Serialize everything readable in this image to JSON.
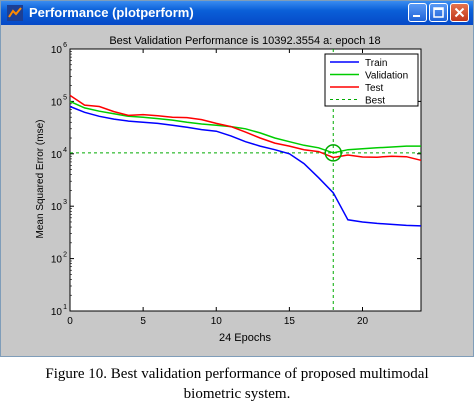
{
  "window": {
    "title": "Performance (plotperform)",
    "icon": "matlab-figure-icon",
    "buttons": [
      "minimize-icon",
      "maximize-icon",
      "close-icon"
    ]
  },
  "chart_data": {
    "type": "line",
    "title": "Best Validation Performance is 10392.3554 a: epoch 18",
    "xlabel": "24 Epochs",
    "ylabel": "Mean Squared Error  (mse)",
    "xlim": [
      0,
      24
    ],
    "ylim": [
      10,
      1000000
    ],
    "y_scale": "log",
    "x_ticks": [
      0,
      5,
      10,
      15,
      20
    ],
    "y_ticks": [
      {
        "value": 10,
        "label": "10"
      },
      {
        "value": 100,
        "label": "10"
      },
      {
        "value": 1000,
        "label": "10"
      },
      {
        "value": 10000,
        "label": "10"
      },
      {
        "value": 100000,
        "label": "10"
      },
      {
        "value": 1000000,
        "label": "10"
      }
    ],
    "y_tick_exponents": [
      "1",
      "2",
      "3",
      "4",
      "5",
      "6"
    ],
    "grid": false,
    "legend_position": "top-right",
    "series": [
      {
        "name": "Train",
        "color": "#0000ff",
        "x": [
          0,
          1,
          2,
          3,
          4,
          5,
          6,
          7,
          8,
          9,
          10,
          11,
          12,
          13,
          14,
          15,
          16,
          17,
          18,
          19,
          20,
          21,
          22,
          23,
          24
        ],
        "y": [
          80000,
          62000,
          52000,
          46000,
          42000,
          40000,
          38000,
          35000,
          32000,
          29000,
          27000,
          22000,
          17000,
          14000,
          12000,
          10000,
          6500,
          3500,
          1800,
          550,
          500,
          470,
          450,
          430,
          420
        ]
      },
      {
        "name": "Validation",
        "color": "#00cc00",
        "x": [
          0,
          1,
          2,
          3,
          4,
          5,
          6,
          7,
          8,
          9,
          10,
          11,
          12,
          13,
          14,
          15,
          16,
          17,
          18,
          19,
          20,
          21,
          22,
          23,
          24
        ],
        "y": [
          100000,
          75000,
          65000,
          58000,
          52000,
          50000,
          47000,
          44000,
          40000,
          37000,
          35000,
          33000,
          30000,
          25000,
          20000,
          17000,
          14500,
          13000,
          10392,
          12000,
          12500,
          13000,
          13500,
          14000,
          14000
        ]
      },
      {
        "name": "Test",
        "color": "#ff0000",
        "x": [
          0,
          1,
          2,
          3,
          4,
          5,
          6,
          7,
          8,
          9,
          10,
          11,
          12,
          13,
          14,
          15,
          16,
          17,
          18,
          19,
          20,
          21,
          22,
          23,
          24
        ],
        "y": [
          130000,
          85000,
          80000,
          64000,
          54000,
          56000,
          53000,
          50000,
          49000,
          45000,
          38000,
          33000,
          26000,
          20000,
          16000,
          14000,
          12000,
          11000,
          8500,
          9500,
          8700,
          8600,
          9000,
          8800,
          7500
        ]
      }
    ],
    "best": {
      "name": "Best",
      "color": "#00aa00",
      "epoch": 18,
      "value": 10392.3554
    }
  },
  "caption": {
    "line1": "Figure 10.  Best validation performance of proposed multimodal",
    "line2": "biometric system."
  }
}
